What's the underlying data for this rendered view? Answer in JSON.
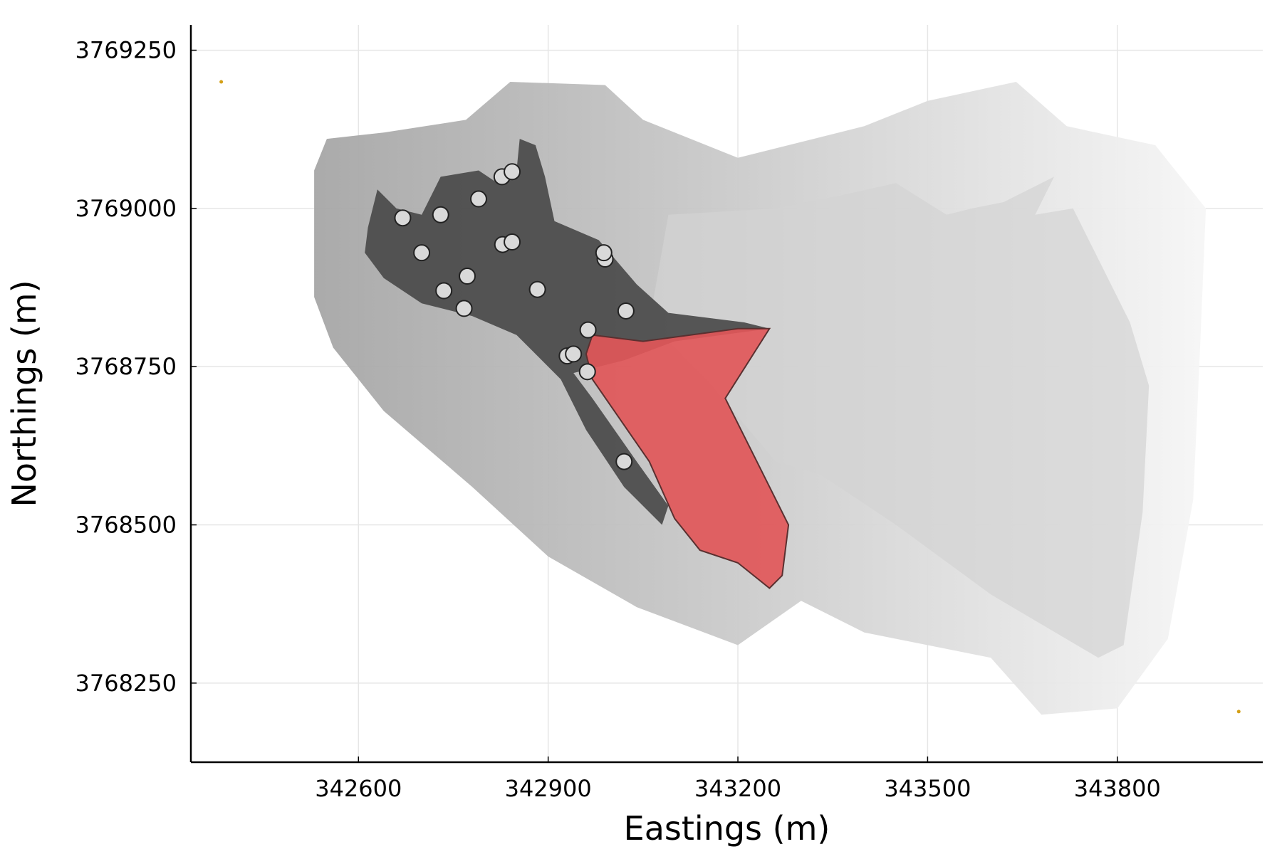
{
  "chart_data": {
    "type": "scatter",
    "title": "",
    "xlabel": "Eastings (m)",
    "ylabel": "Northings (m)",
    "xlim": [
      342335,
      344030
    ],
    "ylim": [
      3768125,
      3769290
    ],
    "grid": true,
    "legend": "none",
    "x_ticks": [
      342600,
      342900,
      343200,
      343500,
      343800
    ],
    "x_tick_labels": [
      "342600",
      "342900",
      "343200",
      "343500",
      "343800"
    ],
    "y_ticks": [
      3768250,
      3768500,
      3768750,
      3769000,
      3769250
    ],
    "y_tick_labels": [
      "3768250",
      "3768500",
      "3768750",
      "3769000",
      "3769250"
    ],
    "colors": {
      "dark_region": "#4a4a4a",
      "red_region": "#e15759",
      "points_fill": "#d9d9d9",
      "points_stroke": "#222222"
    },
    "background_field": {
      "description_colors": [
        "#a8a8a8",
        "#f5f5f5"
      ],
      "polygon": [
        [
          342530,
          3769060
        ],
        [
          342550,
          3769110
        ],
        [
          342640,
          3769120
        ],
        [
          342770,
          3769140
        ],
        [
          342840,
          3769200
        ],
        [
          342990,
          3769195
        ],
        [
          343050,
          3769140
        ],
        [
          343200,
          3769080
        ],
        [
          343400,
          3769130
        ],
        [
          343500,
          3769170
        ],
        [
          343640,
          3769200
        ],
        [
          343720,
          3769130
        ],
        [
          343860,
          3769100
        ],
        [
          343940,
          3769000
        ],
        [
          343930,
          3768760
        ],
        [
          343920,
          3768540
        ],
        [
          343880,
          3768320
        ],
        [
          343800,
          3768210
        ],
        [
          343680,
          3768200
        ],
        [
          343600,
          3768290
        ],
        [
          343400,
          3768330
        ],
        [
          343300,
          3768380
        ],
        [
          343200,
          3768310
        ],
        [
          343040,
          3768370
        ],
        [
          342900,
          3768450
        ],
        [
          342780,
          3768560
        ],
        [
          342640,
          3768680
        ],
        [
          342560,
          3768780
        ],
        [
          342530,
          3768860
        ]
      ]
    },
    "inner_light_polygon": [
      [
        343090,
        3768990
      ],
      [
        343260,
        3769000
      ],
      [
        343360,
        3769020
      ],
      [
        343450,
        3769040
      ],
      [
        343530,
        3768990
      ],
      [
        343570,
        3769000
      ],
      [
        343620,
        3769010
      ],
      [
        343700,
        3769050
      ],
      [
        343670,
        3768990
      ],
      [
        343730,
        3769000
      ],
      [
        343820,
        3768820
      ],
      [
        343850,
        3768720
      ],
      [
        343840,
        3768520
      ],
      [
        343810,
        3768310
      ],
      [
        343770,
        3768290
      ],
      [
        343600,
        3768390
      ],
      [
        343450,
        3768500
      ],
      [
        343330,
        3768580
      ],
      [
        343260,
        3768600
      ],
      [
        343150,
        3768730
      ],
      [
        343060,
        3768820
      ]
    ],
    "dark_region_polygon": [
      [
        342615,
        3768970
      ],
      [
        342630,
        3769030
      ],
      [
        342660,
        3769000
      ],
      [
        342700,
        3768990
      ],
      [
        342730,
        3769050
      ],
      [
        342790,
        3769060
      ],
      [
        342820,
        3769040
      ],
      [
        342850,
        3769060
      ],
      [
        342855,
        3769110
      ],
      [
        342880,
        3769100
      ],
      [
        342895,
        3769050
      ],
      [
        342910,
        3768980
      ],
      [
        342980,
        3768950
      ],
      [
        343040,
        3768880
      ],
      [
        343090,
        3768835
      ],
      [
        343210,
        3768820
      ],
      [
        343250,
        3768810
      ],
      [
        343100,
        3768790
      ],
      [
        343020,
        3768760
      ],
      [
        342940,
        3768740
      ],
      [
        342970,
        3768700
      ],
      [
        343040,
        3768600
      ],
      [
        343090,
        3768530
      ],
      [
        343080,
        3768500
      ],
      [
        343020,
        3768560
      ],
      [
        342960,
        3768650
      ],
      [
        342920,
        3768730
      ],
      [
        342850,
        3768800
      ],
      [
        342780,
        3768830
      ],
      [
        342700,
        3768850
      ],
      [
        342640,
        3768890
      ],
      [
        342610,
        3768930
      ]
    ],
    "red_region_polygon": [
      [
        342970,
        3768800
      ],
      [
        343050,
        3768790
      ],
      [
        343200,
        3768810
      ],
      [
        343250,
        3768810
      ],
      [
        343180,
        3768700
      ],
      [
        343230,
        3768600
      ],
      [
        343280,
        3768500
      ],
      [
        343270,
        3768420
      ],
      [
        343250,
        3768400
      ],
      [
        343200,
        3768440
      ],
      [
        343140,
        3768460
      ],
      [
        343100,
        3768510
      ],
      [
        343060,
        3768600
      ],
      [
        342970,
        3768730
      ],
      [
        342960,
        3768770
      ]
    ],
    "points": {
      "x": [
        342670,
        342730,
        342790,
        342827,
        342843,
        342700,
        342735,
        342772,
        342828,
        342843,
        342990,
        342988,
        342883,
        342767,
        343023,
        342963,
        342930,
        342940,
        342962,
        343020
      ],
      "y": [
        3768985,
        3768990,
        3769015,
        3769050,
        3769058,
        3768930,
        3768870,
        3768893,
        3768943,
        3768947,
        3768920,
        3768930,
        3768872,
        3768842,
        3768838,
        3768808,
        3768767,
        3768770,
        3768742,
        3768600
      ]
    },
    "corner_markers": {
      "x": [
        342383,
        343992
      ],
      "y": [
        3769200,
        3768205
      ]
    }
  }
}
